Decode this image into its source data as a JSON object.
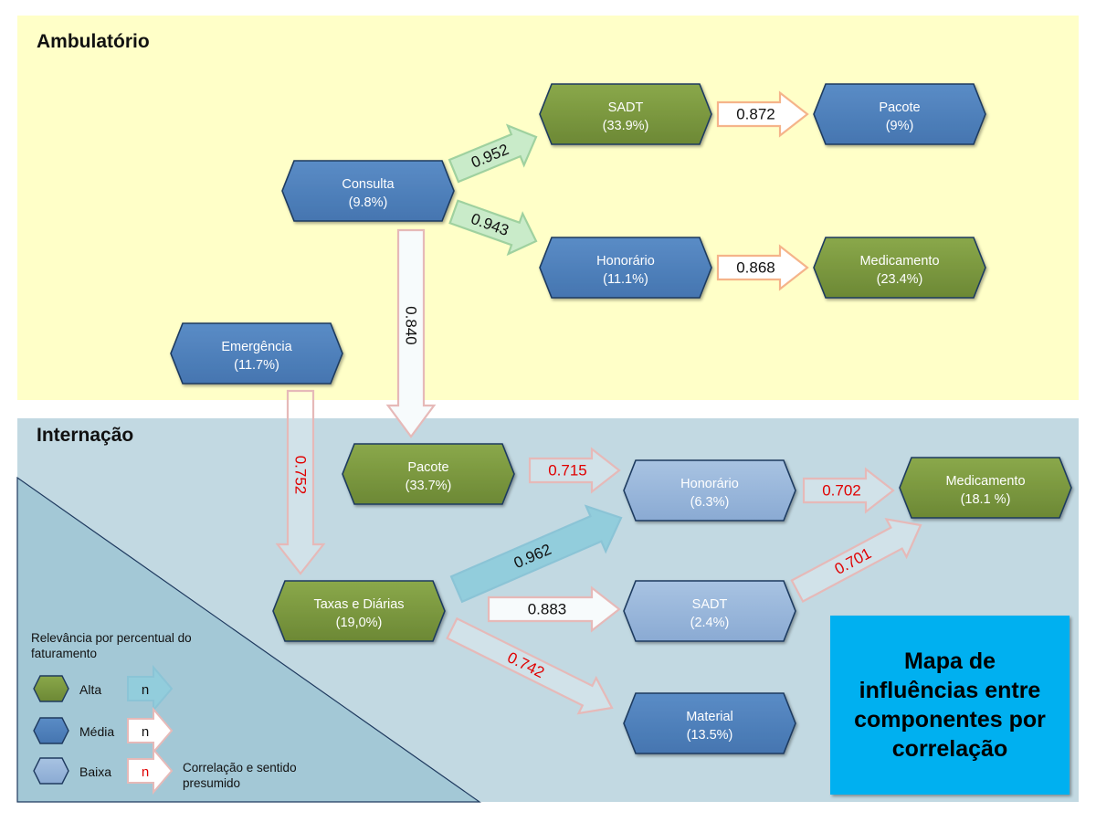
{
  "sections": {
    "ambulatorio": "Ambulatório",
    "internacao": "Internação"
  },
  "title": "Mapa de influências entre componentes por correlação",
  "legend": {
    "heading": "Relevância por percentual do faturamento",
    "levels": [
      {
        "key": "alta",
        "label": "Alta",
        "color": "#77933c"
      },
      {
        "key": "media",
        "label": "Média",
        "color": "#4f81bd"
      },
      {
        "key": "baixa",
        "label": "Baixa",
        "color": "#95b3d7"
      }
    ],
    "arrow_sample": "n",
    "arrow_note": "Correlação e sentido presumido"
  },
  "colors": {
    "alta": "#77933c",
    "media": "#4f81bd",
    "baixa": "#95b3d7",
    "arrow_green": "#c9ebc9",
    "arrow_blue": "#92cddc",
    "arrow_pink": "#e6b9b8",
    "text_red": "#e00000"
  },
  "nodes": [
    {
      "id": "amb-consulta",
      "name": "Consulta",
      "value": "(9.8%)",
      "level": "media"
    },
    {
      "id": "amb-sadt",
      "name": "SADT",
      "value": "(33.9%)",
      "level": "alta"
    },
    {
      "id": "amb-pacote",
      "name": "Pacote",
      "value": "(9%)",
      "level": "media"
    },
    {
      "id": "amb-honorario",
      "name": "Honorário",
      "value": "(11.1%)",
      "level": "media"
    },
    {
      "id": "amb-medicamento",
      "name": "Medicamento",
      "value": "(23.4%)",
      "level": "alta"
    },
    {
      "id": "emergencia",
      "name": "Emergência",
      "value": "(11.7%)",
      "level": "media"
    },
    {
      "id": "int-pacote",
      "name": "Pacote",
      "value": "(33.7%)",
      "level": "alta"
    },
    {
      "id": "int-honorario",
      "name": "Honorário",
      "value": "(6.3%)",
      "level": "baixa"
    },
    {
      "id": "int-medicamento",
      "name": "Medicamento",
      "value": "(18.1 %)",
      "level": "alta"
    },
    {
      "id": "int-taxas",
      "name": "Taxas e Diárias",
      "value": "(19,0%)",
      "level": "alta"
    },
    {
      "id": "int-sadt",
      "name": "SADT",
      "value": "(2.4%)",
      "level": "baixa"
    },
    {
      "id": "int-material",
      "name": "Material",
      "value": "(13.5%)",
      "level": "media"
    }
  ],
  "edges": [
    {
      "from": "amb-consulta",
      "to": "amb-sadt",
      "label": "0.952",
      "style": "green"
    },
    {
      "from": "amb-consulta",
      "to": "amb-honorario",
      "label": "0.943",
      "style": "green"
    },
    {
      "from": "amb-sadt",
      "to": "amb-pacote",
      "label": "0.872",
      "style": "orange"
    },
    {
      "from": "amb-honorario",
      "to": "amb-medicamento",
      "label": "0.868",
      "style": "orange"
    },
    {
      "from": "amb-consulta",
      "to": "int-pacote",
      "label": "0.840",
      "style": "pink"
    },
    {
      "from": "emergencia",
      "to": "int-taxas",
      "label": "0.752",
      "style": "pink-red"
    },
    {
      "from": "int-pacote",
      "to": "int-honorario",
      "label": "0.715",
      "style": "pink-red"
    },
    {
      "from": "int-honorario",
      "to": "int-medicamento",
      "label": "0.702",
      "style": "pink-red"
    },
    {
      "from": "int-taxas",
      "to": "int-honorario",
      "label": "0.962",
      "style": "blue"
    },
    {
      "from": "int-taxas",
      "to": "int-sadt",
      "label": "0.883",
      "style": "pink"
    },
    {
      "from": "int-sadt",
      "to": "int-medicamento",
      "label": "0.701",
      "style": "pink-red"
    },
    {
      "from": "int-taxas",
      "to": "int-material",
      "label": "0.742",
      "style": "pink-red"
    }
  ]
}
